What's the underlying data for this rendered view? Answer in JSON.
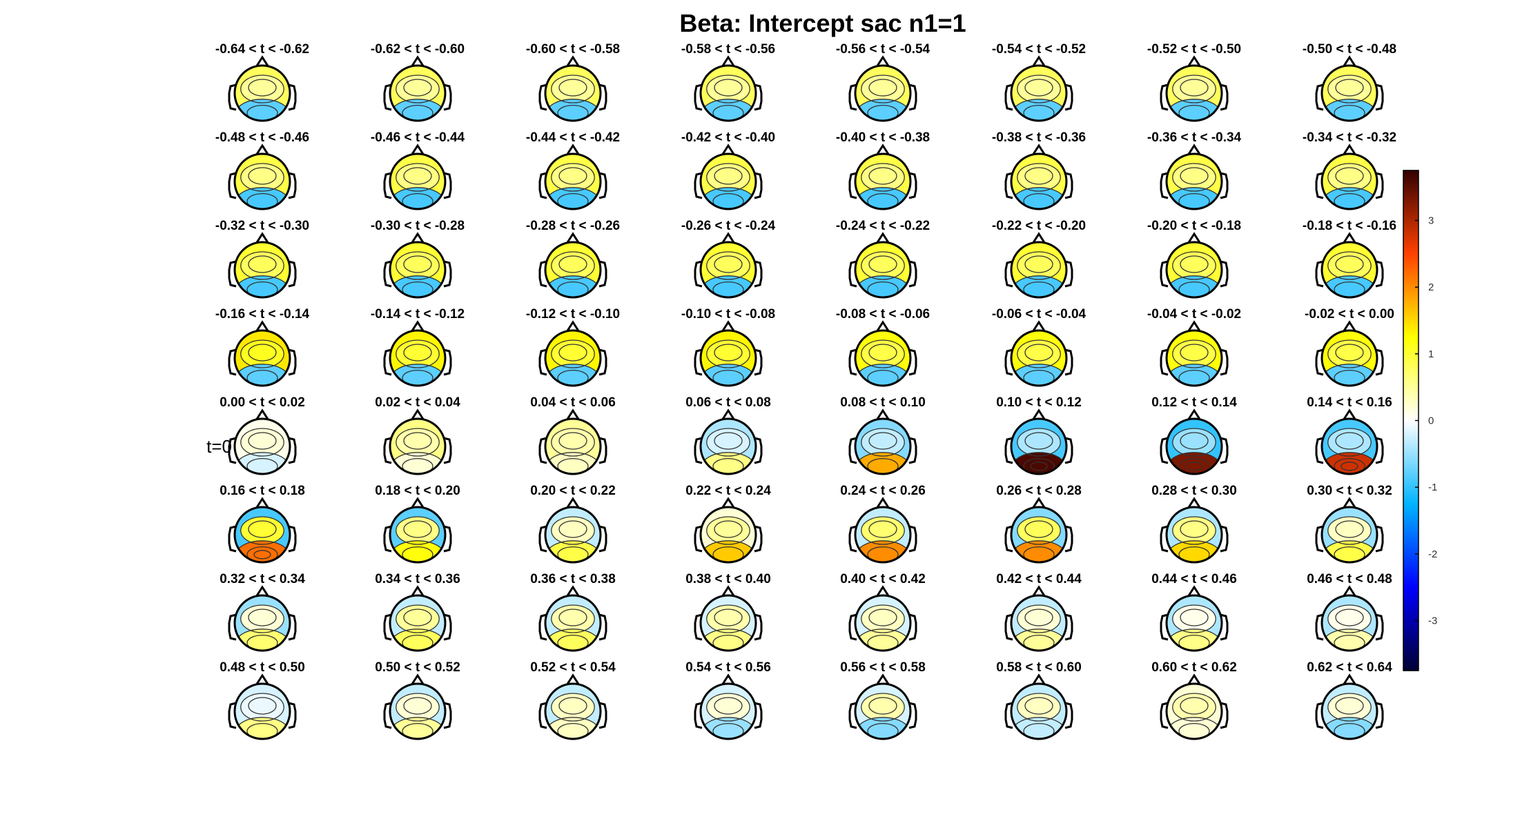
{
  "chart_data": {
    "type": "heatmap",
    "subtype": "topographic-scalp-maps",
    "title": "Beta: Intercept sac  n1=1",
    "grid": {
      "rows": 8,
      "cols": 8
    },
    "panel_titles": [
      "-0.64 < t < -0.62",
      "-0.62 < t < -0.60",
      "-0.60 < t < -0.58",
      "-0.58 < t < -0.56",
      "-0.56 < t < -0.54",
      "-0.54 < t < -0.52",
      "-0.52 < t < -0.50",
      "-0.50 < t < -0.48",
      "-0.48 < t < -0.46",
      "-0.46 < t < -0.44",
      "-0.44 < t < -0.42",
      "-0.42 < t < -0.40",
      "-0.40 < t < -0.38",
      "-0.38 < t < -0.36",
      "-0.36 < t < -0.34",
      "-0.34 < t < -0.32",
      "-0.32 < t < -0.30",
      "-0.30 < t < -0.28",
      "-0.28 < t < -0.26",
      "-0.26 < t < -0.24",
      "-0.24 < t < -0.22",
      "-0.22 < t < -0.20",
      "-0.20 < t < -0.18",
      "-0.18 < t < -0.16",
      "-0.16 < t < -0.14",
      "-0.14 < t < -0.12",
      "-0.12 < t < -0.10",
      "-0.10 < t < -0.08",
      "-0.08 < t < -0.06",
      "-0.06 < t < -0.04",
      "-0.04 < t < -0.02",
      "-0.02 < t < 0.00",
      "0.00 < t < 0.02",
      "0.02 < t < 0.04",
      "0.04 < t < 0.06",
      "0.06 < t < 0.08",
      "0.08 < t < 0.10",
      "0.10 < t < 0.12",
      "0.12 < t < 0.14",
      "0.14 < t < 0.16",
      "0.16 < t < 0.18",
      "0.18 < t < 0.20",
      "0.20 < t < 0.22",
      "0.22 < t < 0.24",
      "0.24 < t < 0.26",
      "0.26 < t < 0.28",
      "0.28 < t < 0.30",
      "0.30 < t < 0.32",
      "0.32 < t < 0.34",
      "0.34 < t < 0.36",
      "0.36 < t < 0.38",
      "0.38 < t < 0.40",
      "0.40 < t < 0.42",
      "0.42 < t < 0.44",
      "0.44 < t < 0.46",
      "0.46 < t < 0.48",
      "0.48 < t < 0.50",
      "0.50 < t < 0.52",
      "0.52 < t < 0.54",
      "0.54 < t < 0.56",
      "0.56 < t < 0.58",
      "0.58 < t < 0.60",
      "0.60 < t < 0.62",
      "0.62 < t < 0.64"
    ],
    "marker_label": "t=0",
    "colorbar": {
      "ticks": [
        3,
        2,
        1,
        0,
        -1,
        -2,
        -3
      ],
      "range": [
        -3.75,
        3.75
      ],
      "colormap": [
        "#000033",
        "#0000ff",
        "#00b4ff",
        "#ffffff",
        "#ffff00",
        "#ff4000",
        "#330000"
      ]
    },
    "panel_values": [
      {
        "front": 0.8,
        "center": 0.5,
        "back": -0.8
      },
      {
        "front": 0.8,
        "center": 0.5,
        "back": -0.8
      },
      {
        "front": 0.8,
        "center": 0.5,
        "back": -0.8
      },
      {
        "front": 0.8,
        "center": 0.5,
        "back": -0.8
      },
      {
        "front": 0.8,
        "center": 0.5,
        "back": -0.8
      },
      {
        "front": 0.8,
        "center": 0.5,
        "back": -0.8
      },
      {
        "front": 0.8,
        "center": 0.5,
        "back": -0.8
      },
      {
        "front": 0.8,
        "center": 0.5,
        "back": -0.8
      },
      {
        "front": 0.9,
        "center": 0.6,
        "back": -0.9
      },
      {
        "front": 0.9,
        "center": 0.6,
        "back": -0.9
      },
      {
        "front": 0.9,
        "center": 0.6,
        "back": -0.9
      },
      {
        "front": 0.9,
        "center": 0.6,
        "back": -0.9
      },
      {
        "front": 0.9,
        "center": 0.6,
        "back": -0.9
      },
      {
        "front": 0.9,
        "center": 0.6,
        "back": -0.9
      },
      {
        "front": 0.9,
        "center": 0.6,
        "back": -0.9
      },
      {
        "front": 0.9,
        "center": 0.6,
        "back": -0.9
      },
      {
        "front": 1.0,
        "center": 0.8,
        "back": -0.9
      },
      {
        "front": 1.0,
        "center": 0.8,
        "back": -0.9
      },
      {
        "front": 1.0,
        "center": 0.8,
        "back": -0.9
      },
      {
        "front": 1.0,
        "center": 0.8,
        "back": -0.9
      },
      {
        "front": 1.0,
        "center": 0.8,
        "back": -0.9
      },
      {
        "front": 1.0,
        "center": 0.8,
        "back": -0.9
      },
      {
        "front": 1.0,
        "center": 0.8,
        "back": -0.9
      },
      {
        "front": 1.0,
        "center": 0.8,
        "back": -0.9
      },
      {
        "front": 1.4,
        "center": 1.1,
        "back": -0.8
      },
      {
        "front": 1.3,
        "center": 1.0,
        "back": -0.8
      },
      {
        "front": 1.3,
        "center": 1.0,
        "back": -0.8
      },
      {
        "front": 1.3,
        "center": 1.0,
        "back": -0.8
      },
      {
        "front": 1.2,
        "center": 0.9,
        "back": -0.8
      },
      {
        "front": 1.2,
        "center": 0.9,
        "back": -0.8
      },
      {
        "front": 1.2,
        "center": 0.9,
        "back": -0.8
      },
      {
        "front": 1.2,
        "center": 0.9,
        "back": -0.8
      },
      {
        "front": 0.1,
        "center": 0.2,
        "back": -0.2
      },
      {
        "front": 0.6,
        "center": 0.4,
        "back": 0.2
      },
      {
        "front": 0.5,
        "center": 0.4,
        "back": 0.3
      },
      {
        "front": -0.4,
        "center": -0.2,
        "back": 0.6
      },
      {
        "front": -0.6,
        "center": -0.3,
        "back": 1.8
      },
      {
        "front": -0.9,
        "center": -0.4,
        "back": 3.6
      },
      {
        "front": -1.0,
        "center": -0.5,
        "back": 3.3
      },
      {
        "front": -0.9,
        "center": -0.4,
        "back": 2.8
      },
      {
        "front": -0.9,
        "center": 1.0,
        "back": 2.2
      },
      {
        "front": -0.8,
        "center": 0.6,
        "back": 1.2
      },
      {
        "front": -0.3,
        "center": 0.3,
        "back": 0.9
      },
      {
        "front": 0.2,
        "center": 0.5,
        "back": 1.6
      },
      {
        "front": -0.3,
        "center": 0.7,
        "back": 2.0
      },
      {
        "front": -0.6,
        "center": 0.8,
        "back": 2.0
      },
      {
        "front": -0.4,
        "center": 0.6,
        "back": 1.5
      },
      {
        "front": -0.5,
        "center": 0.3,
        "back": 0.9
      },
      {
        "front": -0.5,
        "center": 0.2,
        "back": 0.7
      },
      {
        "front": -0.3,
        "center": 0.5,
        "back": 0.8
      },
      {
        "front": -0.3,
        "center": 0.4,
        "back": 0.8
      },
      {
        "front": -0.2,
        "center": 0.4,
        "back": 0.6
      },
      {
        "front": -0.2,
        "center": 0.3,
        "back": 0.5
      },
      {
        "front": -0.3,
        "center": 0.2,
        "back": 0.5
      },
      {
        "front": -0.4,
        "center": 0.1,
        "back": 0.6
      },
      {
        "front": -0.4,
        "center": 0.1,
        "back": 0.4
      },
      {
        "front": -0.2,
        "center": -0.1,
        "back": 0.6
      },
      {
        "front": -0.3,
        "center": 0.2,
        "back": 0.5
      },
      {
        "front": -0.3,
        "center": 0.3,
        "back": 0.3
      },
      {
        "front": -0.2,
        "center": 0.2,
        "back": -0.5
      },
      {
        "front": -0.2,
        "center": 0.4,
        "back": -0.6
      },
      {
        "front": -0.3,
        "center": 0.3,
        "back": -0.3
      },
      {
        "front": 0.2,
        "center": 0.4,
        "back": 0.2
      },
      {
        "front": -0.3,
        "center": 0.2,
        "back": -0.6
      }
    ]
  }
}
